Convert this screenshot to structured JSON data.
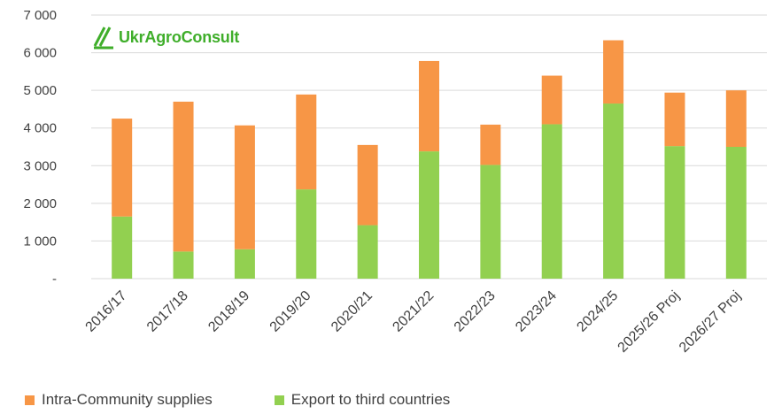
{
  "logo": {
    "text": "UkrAgroConsult",
    "icon": "ukragroconsult-logo-icon"
  },
  "colors": {
    "intra": "#f79646",
    "export": "#92d050",
    "grid": "#d9d9d9",
    "text": "#404040",
    "logo": "#3fae2a"
  },
  "chart_data": {
    "type": "bar",
    "stacked": true,
    "categories": [
      "2016/17",
      "2017/18",
      "2018/19",
      "2019/20",
      "2020/21",
      "2021/22",
      "2022/23",
      "2023/24",
      "2024/25",
      "2025/26 Proj",
      "2026/27 Proj"
    ],
    "series": [
      {
        "name": "Export to third countries",
        "color": "#92d050",
        "values": [
          1650,
          720,
          780,
          2370,
          1420,
          3380,
          3020,
          4100,
          4650,
          3520,
          3500
        ]
      },
      {
        "name": "Intra-Community supplies",
        "color": "#f79646",
        "values": [
          2600,
          3980,
          3290,
          2520,
          2130,
          2400,
          1070,
          1290,
          1680,
          1420,
          1500
        ]
      }
    ],
    "ylim": [
      0,
      7000
    ],
    "yticks": [
      0,
      1000,
      2000,
      3000,
      4000,
      5000,
      6000,
      7000
    ],
    "ytick_labels": [
      "-",
      "1 000",
      "2 000",
      "3 000",
      "4 000",
      "5 000",
      "6 000",
      "7 000"
    ],
    "grid": true,
    "legend_position": "bottom-left",
    "title": "",
    "xlabel": "",
    "ylabel": ""
  },
  "legend": [
    {
      "label": "Intra-Community supplies",
      "color": "#f79646"
    },
    {
      "label": "Export to third countries",
      "color": "#92d050"
    }
  ]
}
